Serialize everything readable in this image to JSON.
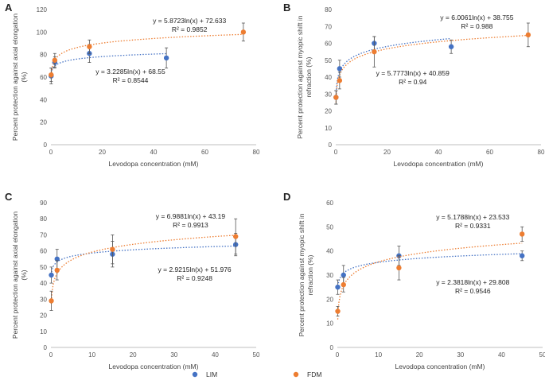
{
  "legend": [
    {
      "name": "LIM",
      "color": "#4472C4"
    },
    {
      "name": "FDM",
      "color": "#ED7D31"
    }
  ],
  "chart_data": [
    {
      "type": "scatter",
      "panel": "A",
      "xlabel": "Levodopa concentration (mM)",
      "ylabel_lines": [
        "Percent protection against axial elongation",
        "(%)"
      ],
      "xlim": [
        0,
        80
      ],
      "xticks": [
        0,
        20,
        40,
        60,
        80
      ],
      "ylim": [
        0,
        120
      ],
      "yticks": [
        0,
        20,
        40,
        60,
        80,
        100,
        120
      ],
      "series": [
        {
          "name": "LIM",
          "color": "#4472C4",
          "x": [
            0.1,
            1.5,
            15,
            45
          ],
          "y": [
            61,
            73,
            81,
            77
          ],
          "err": [
            7,
            5,
            8,
            9
          ],
          "fit": {
            "a": 3.2285,
            "b": 68.55,
            "range": [
              0.1,
              45
            ]
          }
        },
        {
          "name": "FDM",
          "color": "#ED7D31",
          "x": [
            0.1,
            1.5,
            15,
            75
          ],
          "y": [
            62,
            75,
            87,
            100
          ],
          "err": [
            6,
            6,
            6,
            8
          ],
          "fit": {
            "a": 5.8723,
            "b": 72.633,
            "range": [
              0.1,
              75
            ]
          }
        }
      ],
      "annotations": [
        {
          "series": "FDM",
          "eq": "y = 5.8723ln(x) + 72.633",
          "r2": "R² = 0.9852",
          "at": [
            54,
            108
          ]
        },
        {
          "series": "LIM",
          "eq": "y = 3.2285ln(x) + 68.55",
          "r2": "R² = 0.8544",
          "at": [
            31,
            63
          ]
        }
      ]
    },
    {
      "type": "scatter",
      "panel": "B",
      "xlabel": "Levodopa concentration (mM)",
      "ylabel_lines": [
        "Percent protection against myopic shift in",
        "refraction (%)"
      ],
      "xlim": [
        0,
        80
      ],
      "xticks": [
        0,
        20,
        40,
        60,
        80
      ],
      "ylim": [
        0,
        80
      ],
      "yticks": [
        0,
        10,
        20,
        30,
        40,
        50,
        60,
        70,
        80
      ],
      "series": [
        {
          "name": "LIM",
          "color": "#4472C4",
          "x": [
            0.1,
            1.5,
            15,
            45
          ],
          "y": [
            28,
            45,
            60,
            58
          ],
          "err": [
            4,
            5,
            4,
            4
          ],
          "fit": {
            "a": 5.7773,
            "b": 40.859,
            "range": [
              0.1,
              45
            ]
          }
        },
        {
          "name": "FDM",
          "color": "#ED7D31",
          "x": [
            0.1,
            1.5,
            15,
            75
          ],
          "y": [
            28,
            38,
            55,
            65
          ],
          "err": [
            4,
            5,
            9,
            7
          ],
          "fit": {
            "a": 6.0061,
            "b": 38.755,
            "range": [
              0.1,
              75
            ]
          }
        }
      ],
      "annotations": [
        {
          "series": "FDM",
          "eq": "y = 6.0061ln(x) + 38.755",
          "r2": "R² = 0.988",
          "at": [
            55,
            74
          ]
        },
        {
          "series": "LIM",
          "eq": "y = 5.7773ln(x) + 40.859",
          "r2": "R² = 0.94",
          "at": [
            30,
            41
          ]
        }
      ]
    },
    {
      "type": "scatter",
      "panel": "C",
      "xlabel": "Levodopa concentration (mM)",
      "ylabel_lines": [
        "Percent protection against axial elongation",
        "(%)"
      ],
      "xlim": [
        0,
        50
      ],
      "xticks": [
        0,
        10,
        20,
        30,
        40,
        50
      ],
      "ylim": [
        0,
        90
      ],
      "yticks": [
        0,
        10,
        20,
        30,
        40,
        50,
        60,
        70,
        80,
        90
      ],
      "series": [
        {
          "name": "LIM",
          "color": "#4472C4",
          "x": [
            0.1,
            1.5,
            15,
            45
          ],
          "y": [
            45,
            55,
            58,
            64
          ],
          "err": [
            5,
            6,
            8,
            7
          ],
          "fit": {
            "a": 2.9215,
            "b": 51.976,
            "range": [
              0.1,
              45
            ]
          }
        },
        {
          "name": "FDM",
          "color": "#ED7D31",
          "x": [
            0.1,
            1.5,
            15,
            45
          ],
          "y": [
            29,
            48,
            61,
            69
          ],
          "err": [
            6,
            6,
            9,
            11
          ],
          "fit": {
            "a": 6.9881,
            "b": 43.19,
            "range": [
              0.1,
              45
            ]
          }
        }
      ],
      "annotations": [
        {
          "series": "FDM",
          "eq": "y = 6.9881ln(x) + 43.19",
          "r2": "R² = 0.9913",
          "at": [
            34,
            80
          ]
        },
        {
          "series": "LIM",
          "eq": "y = 2.9215ln(x) + 51.976",
          "r2": "R² = 0.9248",
          "at": [
            35,
            47
          ]
        }
      ]
    },
    {
      "type": "scatter",
      "panel": "D",
      "xlabel": "Levodopa concentration (mM)",
      "ylabel_lines": [
        "Percent protection against myopic shift in",
        "refraction (%)"
      ],
      "xlim": [
        0,
        50
      ],
      "xticks": [
        0,
        10,
        20,
        30,
        40,
        50
      ],
      "ylim": [
        0,
        60
      ],
      "yticks": [
        0,
        10,
        20,
        30,
        40,
        50,
        60
      ],
      "series": [
        {
          "name": "LIM",
          "color": "#4472C4",
          "x": [
            0.1,
            1.5,
            15,
            45
          ],
          "y": [
            25,
            30,
            38,
            38
          ],
          "err": [
            3,
            4,
            4,
            2
          ],
          "fit": {
            "a": 2.3818,
            "b": 29.808,
            "range": [
              0.1,
              45
            ]
          }
        },
        {
          "name": "FDM",
          "color": "#ED7D31",
          "x": [
            0.1,
            1.5,
            15,
            45
          ],
          "y": [
            15,
            26,
            33,
            47
          ],
          "err": [
            2,
            3,
            5,
            3
          ],
          "fit": {
            "a": 5.1788,
            "b": 23.533,
            "range": [
              0.1,
              45
            ]
          }
        }
      ],
      "annotations": [
        {
          "series": "FDM",
          "eq": "y = 5.1788ln(x) + 23.533",
          "r2": "R² = 0.9331",
          "at": [
            33,
            53
          ]
        },
        {
          "series": "LIM",
          "eq": "y = 2.3818ln(x) + 29.808",
          "r2": "R² = 0.9546",
          "at": [
            33,
            26
          ]
        }
      ]
    }
  ]
}
